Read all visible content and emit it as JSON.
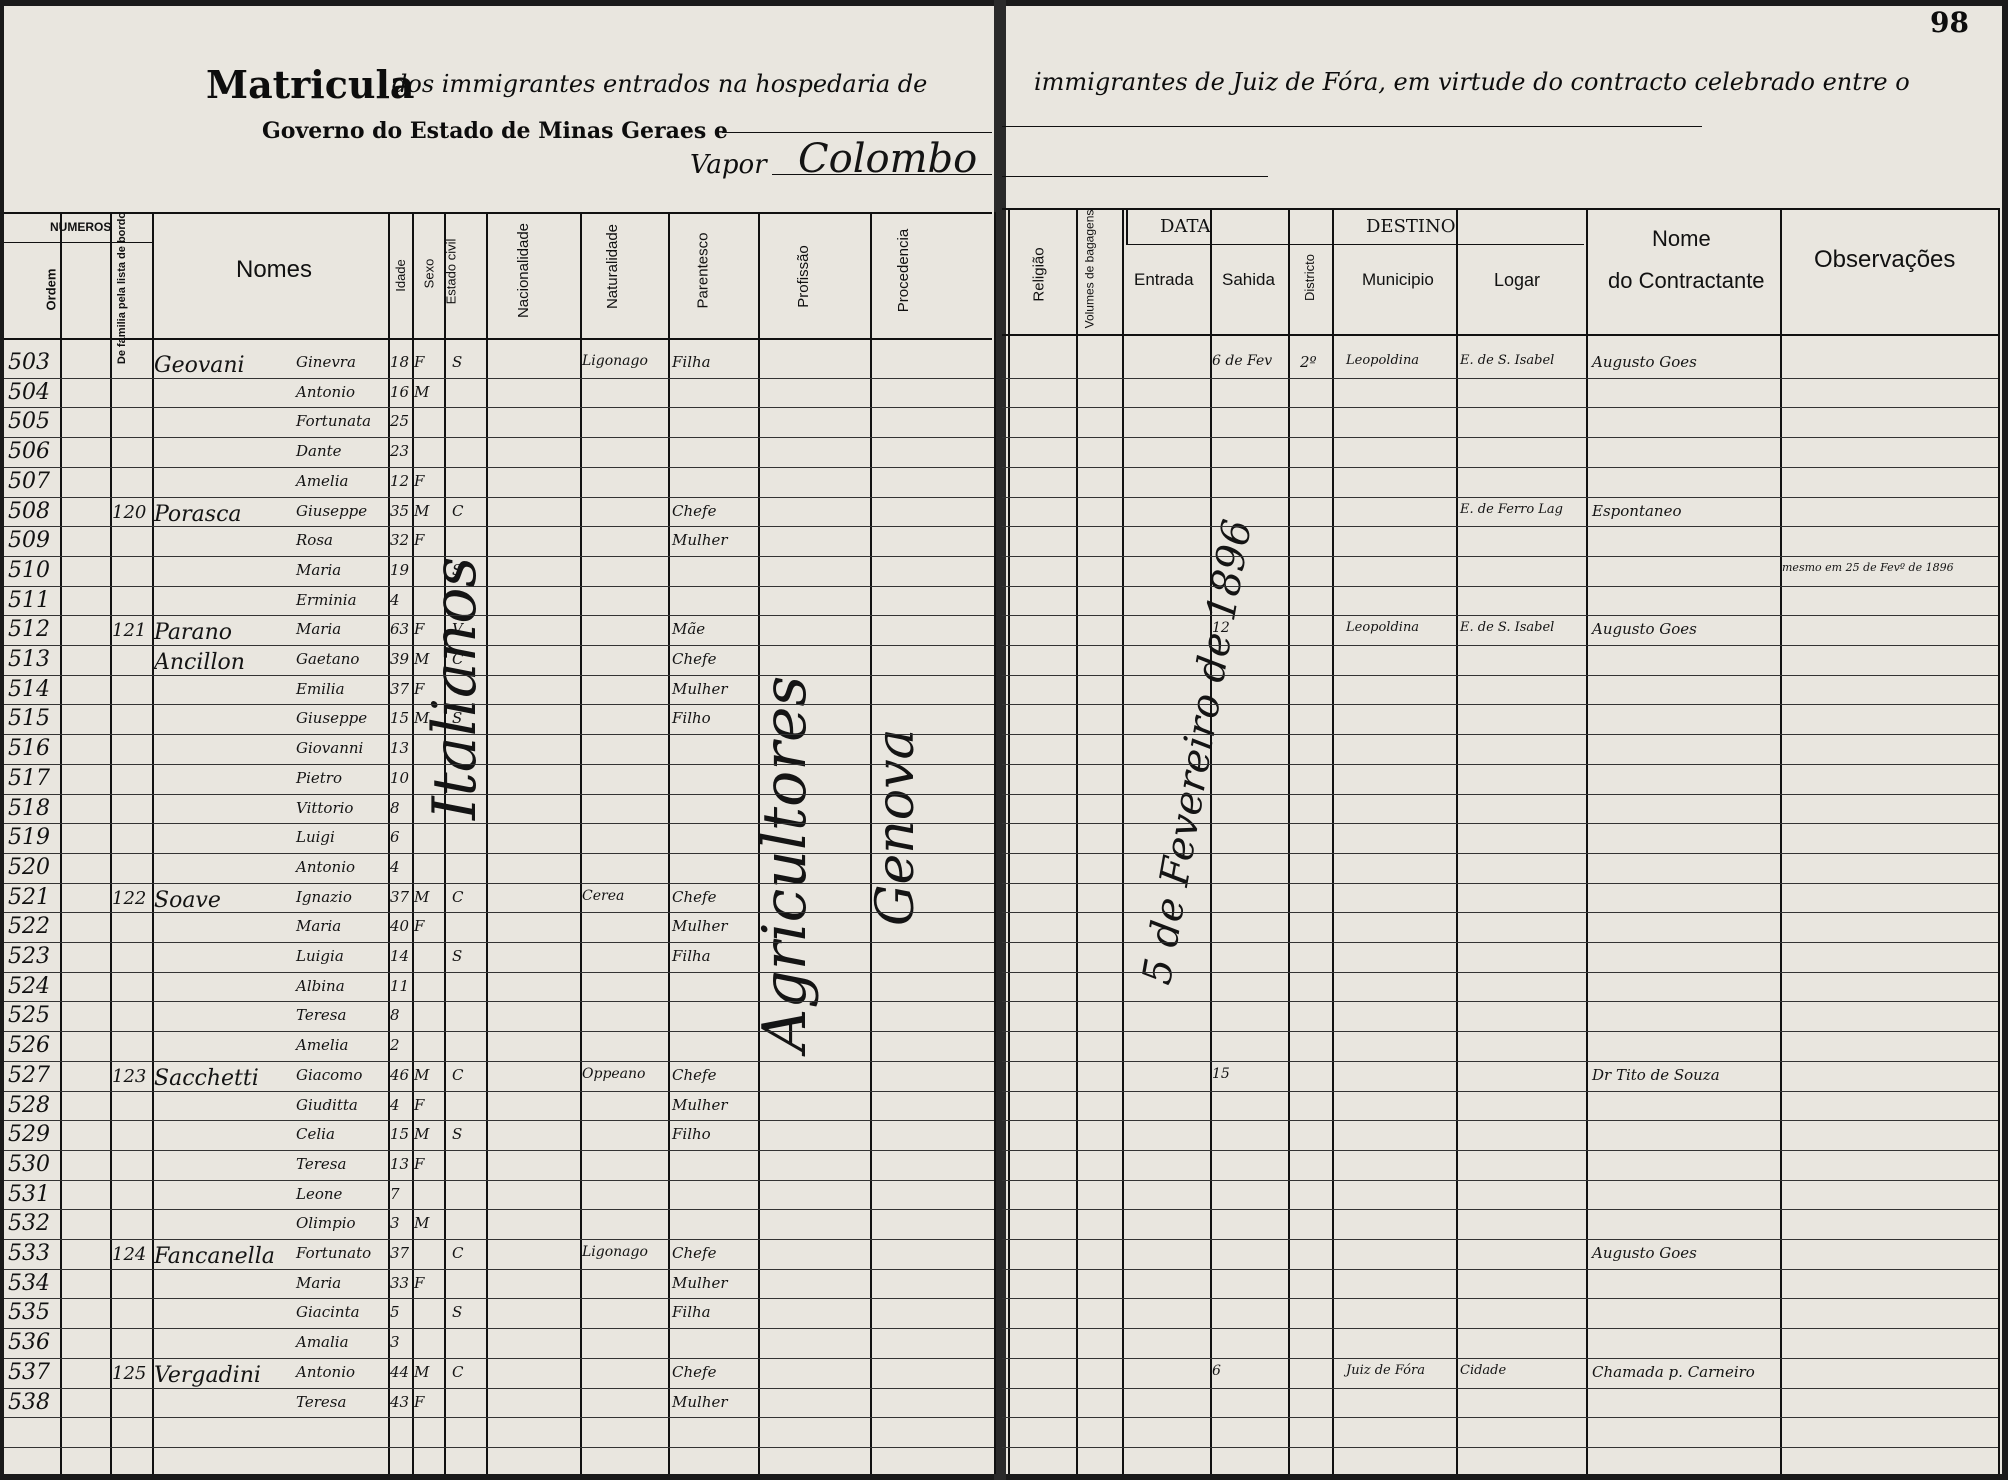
{
  "page_number": "98",
  "title": {
    "left_main": "Matricula",
    "left_rest": "dos immigrantes entrados na hospedaria de",
    "right": "immigrantes de Juiz de Fóra, em virtude do contracto celebrado entre o",
    "line2": "Governo do Estado de Minas Geraes e",
    "vapor_label": "Vapor",
    "vapor_value": "Colombo"
  },
  "headers": {
    "numeros": "NUMEROS",
    "ordem": "Ordem",
    "familia": "De familia pela lista de bordo",
    "nomes": "Nomes",
    "idade": "Idade",
    "sexo": "Sexo",
    "estado_civil": "Estado civil",
    "nacionalidade": "Nacionalidade",
    "naturalidade": "Naturalidade",
    "parentesco": "Parentesco",
    "profissao": "Profissão",
    "procedencia": "Procedencia",
    "religiao": "Religião",
    "volumes": "Volumes de bagagens",
    "data": "DATA",
    "entrada": "Entrada",
    "sahida": "Sahida",
    "destino": "DESTINO",
    "districto": "Districto",
    "municipio": "Municipio",
    "logar": "Logar",
    "nome": "Nome",
    "do_contractante": "do Contractante",
    "observacoes": "Observações"
  },
  "vertical_entries": {
    "nacionalidade": "Italianos",
    "profissao": "Agricultores",
    "procedencia": "Genova",
    "entrada": "5 de Fevereiro de 1896"
  },
  "rows": [
    {
      "ordem": "503",
      "familia": "",
      "sobrenome": "Geovani",
      "nome": "Ginevra",
      "idade": "18",
      "sexo": "F",
      "estado": "S",
      "naturalidade": "Ligonago",
      "parentesco": "Filha",
      "sahida": "6 de Fev",
      "districto": "2º",
      "municipio": "Leopoldina",
      "logar": "E. de S. Isabel",
      "contractante": "Augusto Goes",
      "obs": ""
    },
    {
      "ordem": "504",
      "familia": "",
      "sobrenome": "",
      "nome": "Antonio",
      "idade": "16",
      "sexo": "M",
      "estado": "",
      "naturalidade": "",
      "parentesco": "",
      "sahida": "",
      "districto": "",
      "municipio": "",
      "logar": "",
      "contractante": "",
      "obs": ""
    },
    {
      "ordem": "505",
      "familia": "",
      "sobrenome": "",
      "nome": "Fortunata",
      "idade": "25",
      "sexo": "",
      "estado": "",
      "naturalidade": "",
      "parentesco": "",
      "sahida": "",
      "districto": "",
      "municipio": "",
      "logar": "",
      "contractante": "",
      "obs": ""
    },
    {
      "ordem": "506",
      "familia": "",
      "sobrenome": "",
      "nome": "Dante",
      "idade": "23",
      "sexo": "",
      "estado": "",
      "naturalidade": "",
      "parentesco": "",
      "sahida": "",
      "districto": "",
      "municipio": "",
      "logar": "",
      "contractante": "",
      "obs": ""
    },
    {
      "ordem": "507",
      "familia": "",
      "sobrenome": "",
      "nome": "Amelia",
      "idade": "12",
      "sexo": "F",
      "estado": "",
      "naturalidade": "",
      "parentesco": "",
      "sahida": "",
      "districto": "",
      "municipio": "",
      "logar": "",
      "contractante": "",
      "obs": ""
    },
    {
      "ordem": "508",
      "familia": "120",
      "sobrenome": "Porasca",
      "nome": "Giuseppe",
      "idade": "35",
      "sexo": "M",
      "estado": "C",
      "naturalidade": "",
      "parentesco": "Chefe",
      "sahida": "",
      "districto": "",
      "municipio": "",
      "logar": "E. de Ferro Lag",
      "contractante": "Espontaneo",
      "obs": ""
    },
    {
      "ordem": "509",
      "familia": "",
      "sobrenome": "",
      "nome": "Rosa",
      "idade": "32",
      "sexo": "F",
      "estado": "",
      "naturalidade": "",
      "parentesco": "Mulher",
      "sahida": "",
      "districto": "",
      "municipio": "",
      "logar": "",
      "contractante": "",
      "obs": ""
    },
    {
      "ordem": "510",
      "familia": "",
      "sobrenome": "",
      "nome": "Maria",
      "idade": "19",
      "sexo": "",
      "estado": "S",
      "naturalidade": "",
      "parentesco": "",
      "sahida": "",
      "districto": "",
      "municipio": "",
      "logar": "",
      "contractante": "",
      "obs": "mesmo em 25 de Fevº de 1896"
    },
    {
      "ordem": "511",
      "familia": "",
      "sobrenome": "",
      "nome": "Erminia",
      "idade": "4",
      "sexo": "",
      "estado": "",
      "naturalidade": "",
      "parentesco": "",
      "sahida": "",
      "districto": "",
      "municipio": "",
      "logar": "",
      "contractante": "",
      "obs": ""
    },
    {
      "ordem": "512",
      "familia": "121",
      "sobrenome": "Parano",
      "nome": "Maria",
      "idade": "63",
      "sexo": "F",
      "estado": "V",
      "naturalidade": "",
      "parentesco": "Mãe",
      "sahida": "12",
      "districto": "",
      "municipio": "Leopoldina",
      "logar": "E. de S. Isabel",
      "contractante": "Augusto Goes",
      "obs": ""
    },
    {
      "ordem": "513",
      "familia": "",
      "sobrenome": "Ancillon",
      "nome": "Gaetano",
      "idade": "39",
      "sexo": "M",
      "estado": "C",
      "naturalidade": "",
      "parentesco": "Chefe",
      "sahida": "",
      "districto": "",
      "municipio": "",
      "logar": "",
      "contractante": "",
      "obs": ""
    },
    {
      "ordem": "514",
      "familia": "",
      "sobrenome": "",
      "nome": "Emilia",
      "idade": "37",
      "sexo": "F",
      "estado": "",
      "naturalidade": "",
      "parentesco": "Mulher",
      "sahida": "",
      "districto": "",
      "municipio": "",
      "logar": "",
      "contractante": "",
      "obs": ""
    },
    {
      "ordem": "515",
      "familia": "",
      "sobrenome": "",
      "nome": "Giuseppe",
      "idade": "15",
      "sexo": "M",
      "estado": "S",
      "naturalidade": "",
      "parentesco": "Filho",
      "sahida": "",
      "districto": "",
      "municipio": "",
      "logar": "",
      "contractante": "",
      "obs": ""
    },
    {
      "ordem": "516",
      "familia": "",
      "sobrenome": "",
      "nome": "Giovanni",
      "idade": "13",
      "sexo": "",
      "estado": "",
      "naturalidade": "",
      "parentesco": "",
      "sahida": "",
      "districto": "",
      "municipio": "",
      "logar": "",
      "contractante": "",
      "obs": ""
    },
    {
      "ordem": "517",
      "familia": "",
      "sobrenome": "",
      "nome": "Pietro",
      "idade": "10",
      "sexo": "",
      "estado": "",
      "naturalidade": "",
      "parentesco": "",
      "sahida": "",
      "districto": "",
      "municipio": "",
      "logar": "",
      "contractante": "",
      "obs": ""
    },
    {
      "ordem": "518",
      "familia": "",
      "sobrenome": "",
      "nome": "Vittorio",
      "idade": "8",
      "sexo": "",
      "estado": "",
      "naturalidade": "",
      "parentesco": "",
      "sahida": "",
      "districto": "",
      "municipio": "",
      "logar": "",
      "contractante": "",
      "obs": ""
    },
    {
      "ordem": "519",
      "familia": "",
      "sobrenome": "",
      "nome": "Luigi",
      "idade": "6",
      "sexo": "",
      "estado": "",
      "naturalidade": "",
      "parentesco": "",
      "sahida": "",
      "districto": "",
      "municipio": "",
      "logar": "",
      "contractante": "",
      "obs": ""
    },
    {
      "ordem": "520",
      "familia": "",
      "sobrenome": "",
      "nome": "Antonio",
      "idade": "4",
      "sexo": "",
      "estado": "",
      "naturalidade": "",
      "parentesco": "",
      "sahida": "",
      "districto": "",
      "municipio": "",
      "logar": "",
      "contractante": "",
      "obs": ""
    },
    {
      "ordem": "521",
      "familia": "122",
      "sobrenome": "Soave",
      "nome": "Ignazio",
      "idade": "37",
      "sexo": "M",
      "estado": "C",
      "naturalidade": "Cerea",
      "parentesco": "Chefe",
      "sahida": "",
      "districto": "",
      "municipio": "",
      "logar": "",
      "contractante": "",
      "obs": ""
    },
    {
      "ordem": "522",
      "familia": "",
      "sobrenome": "",
      "nome": "Maria",
      "idade": "40",
      "sexo": "F",
      "estado": "",
      "naturalidade": "",
      "parentesco": "Mulher",
      "sahida": "",
      "districto": "",
      "municipio": "",
      "logar": "",
      "contractante": "",
      "obs": ""
    },
    {
      "ordem": "523",
      "familia": "",
      "sobrenome": "",
      "nome": "Luigia",
      "idade": "14",
      "sexo": "",
      "estado": "S",
      "naturalidade": "",
      "parentesco": "Filha",
      "sahida": "",
      "districto": "",
      "municipio": "",
      "logar": "",
      "contractante": "",
      "obs": ""
    },
    {
      "ordem": "524",
      "familia": "",
      "sobrenome": "",
      "nome": "Albina",
      "idade": "11",
      "sexo": "",
      "estado": "",
      "naturalidade": "",
      "parentesco": "",
      "sahida": "",
      "districto": "",
      "municipio": "",
      "logar": "",
      "contractante": "",
      "obs": ""
    },
    {
      "ordem": "525",
      "familia": "",
      "sobrenome": "",
      "nome": "Teresa",
      "idade": "8",
      "sexo": "",
      "estado": "",
      "naturalidade": "",
      "parentesco": "",
      "sahida": "",
      "districto": "",
      "municipio": "",
      "logar": "",
      "contractante": "",
      "obs": ""
    },
    {
      "ordem": "526",
      "familia": "",
      "sobrenome": "",
      "nome": "Amelia",
      "idade": "2",
      "sexo": "",
      "estado": "",
      "naturalidade": "",
      "parentesco": "",
      "sahida": "",
      "districto": "",
      "municipio": "",
      "logar": "",
      "contractante": "",
      "obs": ""
    },
    {
      "ordem": "527",
      "familia": "123",
      "sobrenome": "Sacchetti",
      "nome": "Giacomo",
      "idade": "46",
      "sexo": "M",
      "estado": "C",
      "naturalidade": "Oppeano",
      "parentesco": "Chefe",
      "sahida": "15",
      "districto": "",
      "municipio": "",
      "logar": "",
      "contractante": "Dr Tito de Souza",
      "obs": ""
    },
    {
      "ordem": "528",
      "familia": "",
      "sobrenome": "",
      "nome": "Giuditta",
      "idade": "4",
      "sexo": "F",
      "estado": "",
      "naturalidade": "",
      "parentesco": "Mulher",
      "sahida": "",
      "districto": "",
      "municipio": "",
      "logar": "",
      "contractante": "",
      "obs": ""
    },
    {
      "ordem": "529",
      "familia": "",
      "sobrenome": "",
      "nome": "Celia",
      "idade": "15",
      "sexo": "M",
      "estado": "S",
      "naturalidade": "",
      "parentesco": "Filho",
      "sahida": "",
      "districto": "",
      "municipio": "",
      "logar": "",
      "contractante": "",
      "obs": ""
    },
    {
      "ordem": "530",
      "familia": "",
      "sobrenome": "",
      "nome": "Teresa",
      "idade": "13",
      "sexo": "F",
      "estado": "",
      "naturalidade": "",
      "parentesco": "",
      "sahida": "",
      "districto": "",
      "municipio": "",
      "logar": "",
      "contractante": "",
      "obs": ""
    },
    {
      "ordem": "531",
      "familia": "",
      "sobrenome": "",
      "nome": "Leone",
      "idade": "7",
      "sexo": "",
      "estado": "",
      "naturalidade": "",
      "parentesco": "",
      "sahida": "",
      "districto": "",
      "municipio": "",
      "logar": "",
      "contractante": "",
      "obs": ""
    },
    {
      "ordem": "532",
      "familia": "",
      "sobrenome": "",
      "nome": "Olimpio",
      "idade": "3",
      "sexo": "M",
      "estado": "",
      "naturalidade": "",
      "parentesco": "",
      "sahida": "",
      "districto": "",
      "municipio": "",
      "logar": "",
      "contractante": "",
      "obs": ""
    },
    {
      "ordem": "533",
      "familia": "124",
      "sobrenome": "Fancanella",
      "nome": "Fortunato",
      "idade": "37",
      "sexo": "",
      "estado": "C",
      "naturalidade": "Ligonago",
      "parentesco": "Chefe",
      "sahida": "",
      "districto": "",
      "municipio": "",
      "logar": "",
      "contractante": "Augusto Goes",
      "obs": ""
    },
    {
      "ordem": "534",
      "familia": "",
      "sobrenome": "",
      "nome": "Maria",
      "idade": "33",
      "sexo": "F",
      "estado": "",
      "naturalidade": "",
      "parentesco": "Mulher",
      "sahida": "",
      "districto": "",
      "municipio": "",
      "logar": "",
      "contractante": "",
      "obs": ""
    },
    {
      "ordem": "535",
      "familia": "",
      "sobrenome": "",
      "nome": "Giacinta",
      "idade": "5",
      "sexo": "",
      "estado": "S",
      "naturalidade": "",
      "parentesco": "Filha",
      "sahida": "",
      "districto": "",
      "municipio": "",
      "logar": "",
      "contractante": "",
      "obs": ""
    },
    {
      "ordem": "536",
      "familia": "",
      "sobrenome": "",
      "nome": "Amalia",
      "idade": "3",
      "sexo": "",
      "estado": "",
      "naturalidade": "",
      "parentesco": "",
      "sahida": "",
      "districto": "",
      "municipio": "",
      "logar": "",
      "contractante": "",
      "obs": ""
    },
    {
      "ordem": "537",
      "familia": "125",
      "sobrenome": "Vergadini",
      "nome": "Antonio",
      "idade": "44",
      "sexo": "M",
      "estado": "C",
      "naturalidade": "",
      "parentesco": "Chefe",
      "sahida": "6",
      "districto": "",
      "municipio": "Juiz de Fóra",
      "logar": "Cidade",
      "contractante": "Chamada p. Carneiro",
      "obs": ""
    },
    {
      "ordem": "538",
      "familia": "",
      "sobrenome": "",
      "nome": "Teresa",
      "idade": "43",
      "sexo": "F",
      "estado": "",
      "naturalidade": "",
      "parentesco": "Mulher",
      "sahida": "",
      "districto": "",
      "municipio": "",
      "logar": "",
      "contractante": "",
      "obs": ""
    }
  ]
}
